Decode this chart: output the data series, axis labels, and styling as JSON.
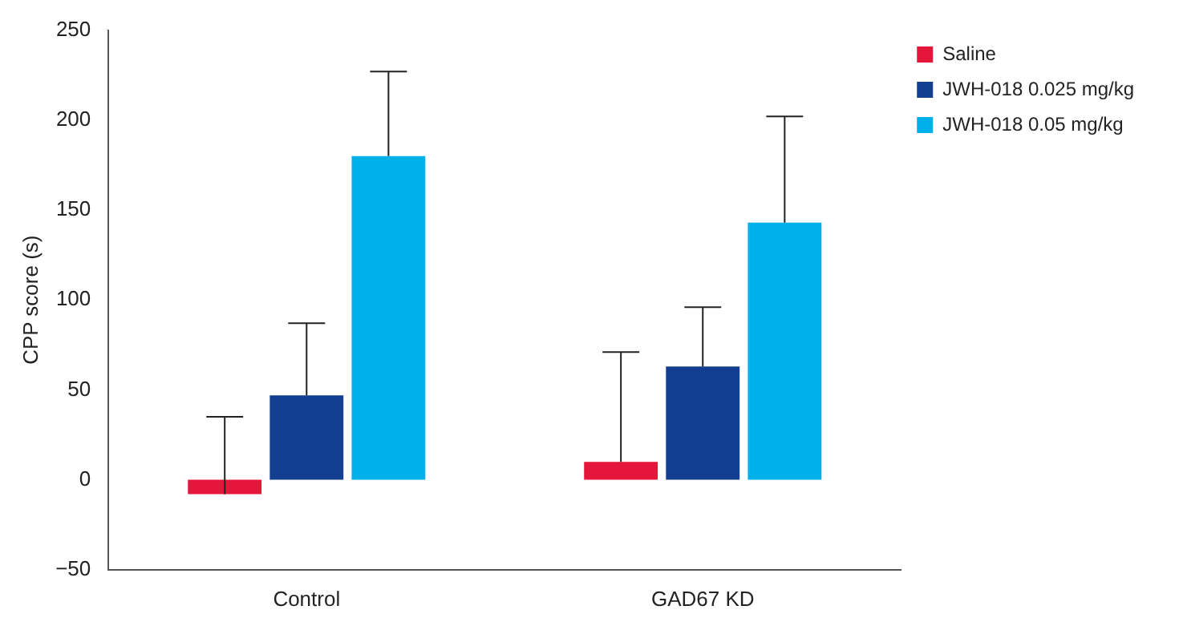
{
  "chart_data": {
    "type": "bar",
    "ylabel": "CPP score (s)",
    "categories": [
      "Control",
      "GAD67 KD"
    ],
    "series": [
      {
        "name": "Saline",
        "color": "#e4163a",
        "values": [
          -8,
          10
        ],
        "errors": [
          [
            -8,
            35
          ],
          [
            10,
            71
          ]
        ]
      },
      {
        "name": "JWH-018 0.025 mg/kg",
        "color": "#123f8f",
        "values": [
          47,
          63
        ],
        "errors": [
          [
            47,
            87
          ],
          [
            63,
            96
          ]
        ]
      },
      {
        "name": "JWH-018 0.05 mg/kg",
        "color": "#00b0e8",
        "values": [
          180,
          143
        ],
        "errors": [
          [
            180,
            227
          ],
          [
            143,
            202
          ]
        ]
      }
    ],
    "ylim": [
      -50,
      250
    ],
    "yticks": [
      {
        "value": -50,
        "label": "−50"
      },
      0,
      50,
      100,
      150,
      200,
      250
    ],
    "grid": false,
    "legend": "top right"
  }
}
